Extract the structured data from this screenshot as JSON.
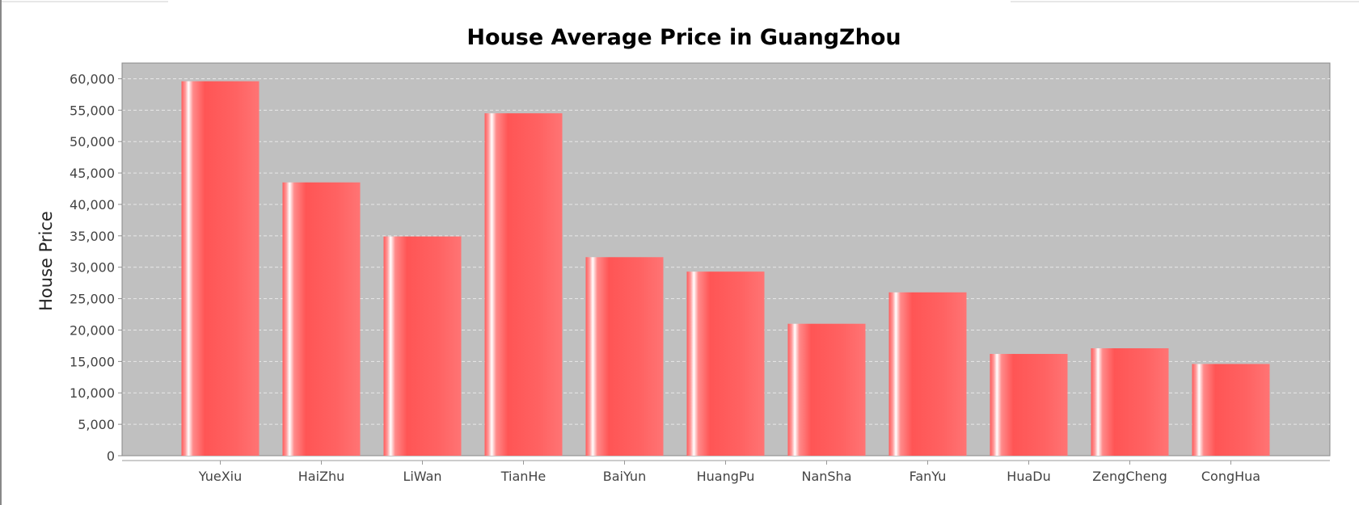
{
  "chart_data": {
    "type": "bar",
    "title": "House Average Price in GuangZhou",
    "xlabel": "",
    "ylabel": "House Price",
    "categories": [
      "YueXiu",
      "HaiZhu",
      "LiWan",
      "TianHe",
      "BaiYun",
      "HuangPu",
      "NanSha",
      "FanYu",
      "HuaDu",
      "ZengCheng",
      "CongHua"
    ],
    "values": [
      59600,
      43500,
      34900,
      54500,
      31600,
      29300,
      21000,
      26000,
      16200,
      17100,
      14600
    ],
    "ylim": [
      0,
      62500
    ],
    "yticks": [
      0,
      5000,
      10000,
      15000,
      20000,
      25000,
      30000,
      35000,
      40000,
      45000,
      50000,
      55000,
      60000
    ],
    "ytick_labels": [
      "0",
      "5,000",
      "10,000",
      "15,000",
      "20,000",
      "25,000",
      "30,000",
      "35,000",
      "40,000",
      "45,000",
      "50,000",
      "55,000",
      "60,000"
    ],
    "grid": true,
    "legend": "none",
    "colors": {
      "bar": "#ff5555",
      "bar_highlight": "#ffffff",
      "plot_background": "#c0c0c0",
      "gridline": "#e8e8e8"
    }
  }
}
